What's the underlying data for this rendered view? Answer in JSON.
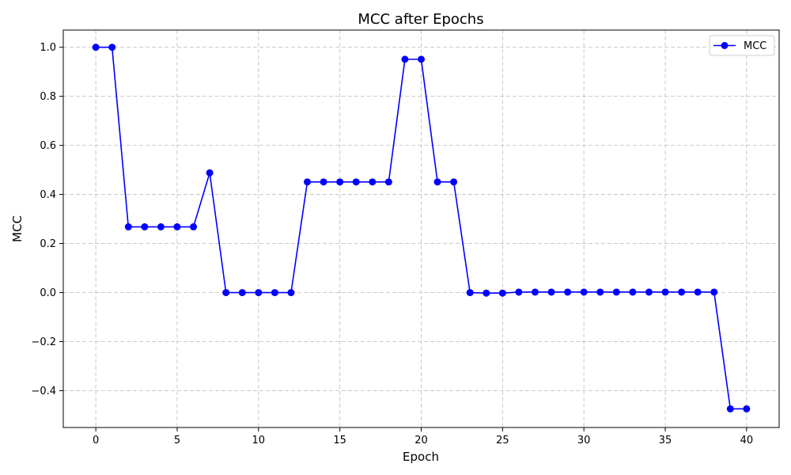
{
  "chart_data": {
    "type": "line",
    "title": "MCC after Epochs",
    "xlabel": "Epoch",
    "ylabel": "MCC",
    "xlim": [
      -2,
      42
    ],
    "ylim": [
      -0.55,
      1.07
    ],
    "xticks": [
      0,
      5,
      10,
      15,
      20,
      25,
      30,
      35,
      40
    ],
    "yticks": [
      -0.4,
      -0.2,
      0.0,
      0.2,
      0.4,
      0.6,
      0.8,
      1.0
    ],
    "xtick_labels": [
      "0",
      "5",
      "10",
      "15",
      "20",
      "25",
      "30",
      "35",
      "40"
    ],
    "ytick_labels": [
      "−0.4",
      "−0.2",
      "0.0",
      "0.2",
      "0.4",
      "0.6",
      "0.8",
      "1.0"
    ],
    "grid": true,
    "legend": "top-right",
    "series": [
      {
        "name": "MCC",
        "color": "#0000ff",
        "marker": "circle",
        "x": [
          0,
          1,
          2,
          3,
          4,
          5,
          6,
          7,
          8,
          9,
          10,
          11,
          12,
          13,
          14,
          15,
          16,
          17,
          18,
          19,
          20,
          21,
          22,
          23,
          24,
          25,
          26,
          27,
          28,
          29,
          30,
          31,
          32,
          33,
          34,
          35,
          36,
          37,
          38,
          39,
          40
        ],
        "y": [
          1.0,
          1.0,
          0.268,
          0.268,
          0.268,
          0.268,
          0.268,
          0.488,
          0.0,
          0.0,
          0.0,
          0.0,
          0.0,
          0.451,
          0.451,
          0.451,
          0.451,
          0.451,
          0.451,
          0.951,
          0.951,
          0.451,
          0.451,
          0.0,
          -0.002,
          -0.002,
          0.002,
          0.002,
          0.002,
          0.002,
          0.002,
          0.002,
          0.002,
          0.002,
          0.002,
          0.002,
          0.002,
          0.002,
          0.002,
          -0.474,
          -0.474
        ]
      }
    ]
  }
}
